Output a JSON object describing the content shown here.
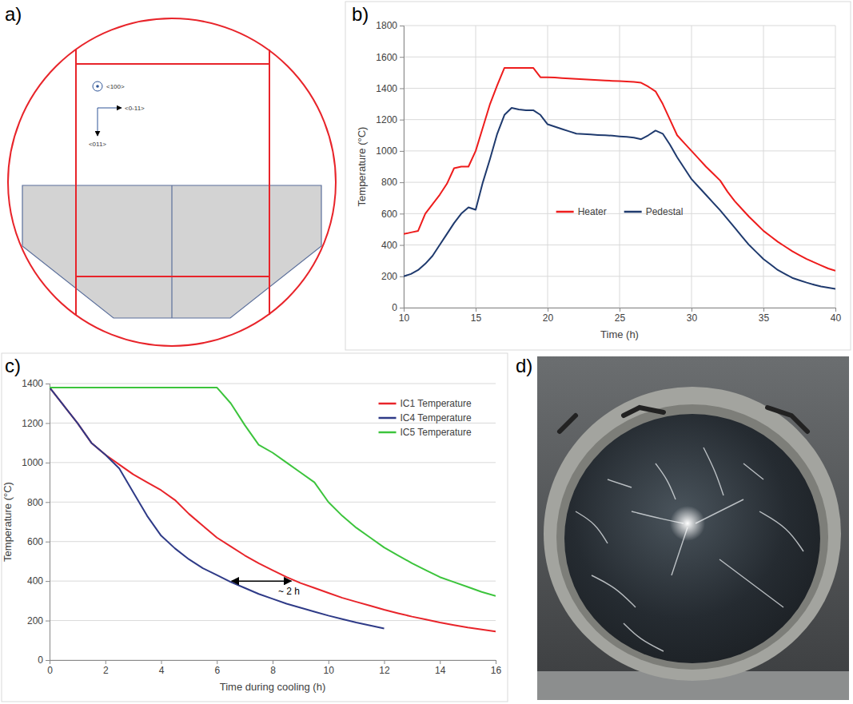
{
  "chart_data": [
    {
      "panel": "b)",
      "type": "line",
      "x_label": "Time (h)",
      "y_label": "Temperature (°C)",
      "x": [
        10,
        10.5,
        11,
        11.5,
        12,
        12.5,
        13,
        13.5,
        14,
        14.5,
        15,
        15.5,
        16,
        16.5,
        17,
        17.5,
        18,
        18.5,
        19,
        19.5,
        20,
        20.5,
        21,
        21.5,
        22,
        22.5,
        23,
        23.5,
        24,
        24.5,
        25,
        25.5,
        26,
        26.5,
        27,
        27.5,
        28,
        28.5,
        29,
        29.5,
        30,
        30.5,
        31,
        31.5,
        32,
        32.5,
        33,
        33.5,
        34,
        34.5,
        35,
        35.5,
        36,
        36.5,
        37,
        37.5,
        38,
        38.5,
        39,
        39.5,
        40
      ],
      "series": [
        {
          "name": "Heater",
          "color": "#ee1c1c",
          "values": [
            470,
            480,
            490,
            600,
            660,
            720,
            790,
            890,
            900,
            900,
            1000,
            1150,
            1300,
            1420,
            1530,
            1530,
            1530,
            1530,
            1530,
            1470,
            1470,
            1468,
            1465,
            1462,
            1460,
            1457,
            1455,
            1452,
            1450,
            1447,
            1445,
            1443,
            1440,
            1435,
            1410,
            1380,
            1300,
            1200,
            1100,
            1050,
            1000,
            950,
            900,
            855,
            810,
            740,
            680,
            630,
            580,
            535,
            490,
            455,
            420,
            390,
            360,
            335,
            310,
            290,
            270,
            250,
            235
          ]
        },
        {
          "name": "Pedestal",
          "color": "#1f3a6e",
          "values": [
            200,
            215,
            240,
            280,
            330,
            400,
            470,
            540,
            600,
            640,
            625,
            800,
            950,
            1110,
            1230,
            1275,
            1265,
            1260,
            1260,
            1230,
            1170,
            1155,
            1140,
            1125,
            1110,
            1108,
            1105,
            1102,
            1100,
            1097,
            1093,
            1090,
            1085,
            1075,
            1100,
            1130,
            1110,
            1040,
            960,
            890,
            820,
            770,
            720,
            670,
            620,
            565,
            510,
            455,
            400,
            355,
            310,
            275,
            240,
            215,
            190,
            175,
            160,
            147,
            135,
            127,
            120
          ]
        }
      ],
      "xlim": [
        10,
        40
      ],
      "xticks": [
        10,
        15,
        20,
        25,
        30,
        35,
        40
      ],
      "ylim": [
        0,
        1800
      ],
      "yticks": [
        0,
        200,
        400,
        600,
        800,
        1000,
        1200,
        1400,
        1600,
        1800
      ],
      "grid": true,
      "legend": "center"
    },
    {
      "panel": "c)",
      "type": "line",
      "x_label": "Time during cooling (h)",
      "y_label": "Temperature (°C)",
      "x": [
        0,
        0.5,
        1,
        1.5,
        2,
        2.5,
        3,
        3.5,
        4,
        4.5,
        5,
        5.5,
        6,
        6.5,
        7,
        7.5,
        8,
        8.5,
        9,
        9.5,
        10,
        10.5,
        11,
        11.5,
        12,
        12.5,
        13,
        13.5,
        14,
        14.5,
        15,
        15.5,
        16
      ],
      "series": [
        {
          "name": "IC1 Temperature",
          "color": "#e8242a",
          "values": [
            1380,
            1290,
            1200,
            1100,
            1040,
            990,
            940,
            900,
            860,
            810,
            740,
            680,
            620,
            575,
            530,
            490,
            455,
            420,
            390,
            365,
            340,
            315,
            295,
            275,
            255,
            237,
            220,
            205,
            190,
            177,
            165,
            155,
            145
          ]
        },
        {
          "name": "IC4 Temperature",
          "color": "#2e3a87",
          "values": [
            1380,
            1290,
            1200,
            1100,
            1040,
            970,
            850,
            730,
            630,
            565,
            510,
            465,
            430,
            395,
            365,
            335,
            310,
            285,
            265,
            245,
            225,
            207,
            190,
            175,
            160,
            null,
            null,
            null,
            null,
            null,
            null,
            null,
            null
          ]
        },
        {
          "name": "IC5 Temperature",
          "color": "#3cc43c",
          "values": [
            1380,
            1380,
            1380,
            1380,
            1380,
            1380,
            1380,
            1380,
            1380,
            1380,
            1380,
            1380,
            1380,
            1300,
            1190,
            1090,
            1050,
            1000,
            950,
            900,
            800,
            730,
            670,
            620,
            570,
            530,
            490,
            455,
            420,
            395,
            370,
            345,
            325
          ]
        }
      ],
      "xlim": [
        0,
        16
      ],
      "xticks": [
        0,
        2,
        4,
        6,
        8,
        10,
        12,
        14,
        16
      ],
      "ylim": [
        0,
        1400
      ],
      "yticks": [
        0,
        200,
        400,
        600,
        800,
        1000,
        1200,
        1400
      ],
      "grid": "y",
      "legend": "upper right",
      "annotations": [
        {
          "text": "~ 2 h",
          "x": [
            6.5,
            8.7
          ],
          "y": 400
        }
      ]
    }
  ],
  "diagram": {
    "panel": "a)",
    "orientations": [
      "<100>",
      "<0-11>",
      "<011>"
    ]
  },
  "photo": {
    "panel": "d)"
  }
}
